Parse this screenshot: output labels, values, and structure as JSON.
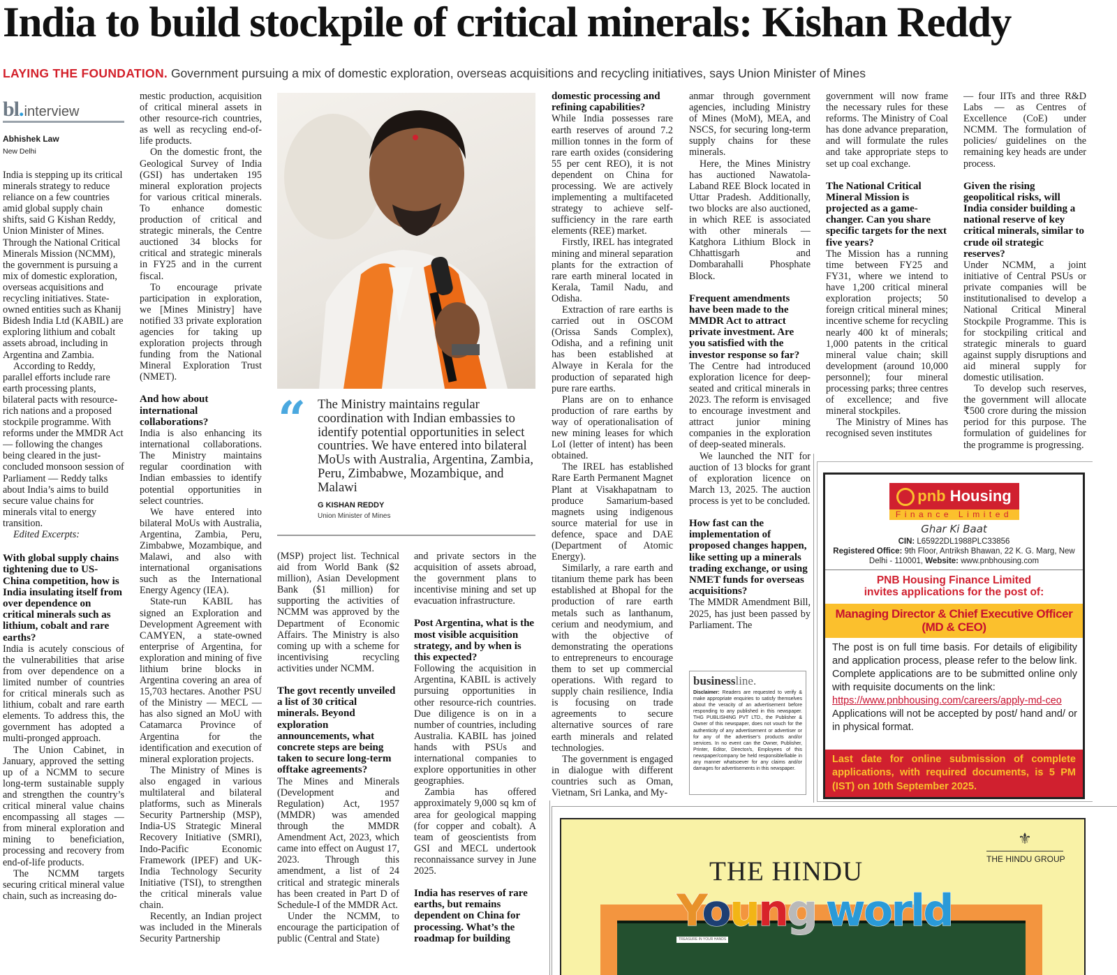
{
  "headline": "India to build stockpile of critical minerals: Kishan Reddy",
  "subhead": {
    "kicker": "LAYING THE FOUNDATION.",
    "text": "Government pursuing a mix of domestic exploration, overseas acquisitions and recycling initiatives, says Union Minister of Mines"
  },
  "section_logo": {
    "brand": "bl",
    "label": "interview"
  },
  "byline": {
    "author": "Abhishek Law",
    "dateline": "New Delhi"
  },
  "photo": {
    "subject": "G Kishan Reddy speaking into a microphone"
  },
  "pull_quote": {
    "text": "The Ministry maintains regular coordination with Indian embassies to identify potential opportunities in select countries. We have entered into bilateral MoUs with Australia, Argentina, Zambia, Peru, Zimbabwe, Mozambique, and Malawi",
    "name": "G KISHAN REDDY",
    "role": "Union Minister of Mines"
  },
  "columns": [
    [
      {
        "t": "intro",
        "text": "India is stepping up its critical minerals strategy to reduce reliance on a few countries amid global supply chain shifts, said G Kishan Reddy, Union Minister of Mines. Through the National Critical Minerals Mission (NCMM), the government is pursuing a mix of domestic exploration, overseas acquisitions and recycling initiatives. State-owned entities such as Khanij Bidesh India Ltd (KABIL) are exploring lithium and cobalt assets abroad, including in Argentina and Zambia."
      },
      {
        "t": "introp",
        "text": "According to Reddy, parallel efforts include rare earth processing plants, bilateral pacts with resource-rich nations and a proposed stockpile programme. With reforms under the MMDR Act — following the changes being cleared in the just-concluded monsoon session of Parliament — Reddy talks about India’s aims to build secure value chains for minerals vital to energy transition."
      },
      {
        "t": "note",
        "text": "Edited Excerpts:"
      },
      {
        "t": "q",
        "text": "With global supply chains tightening due to US-China competition, how is India insulating itself from over dependence on critical minerals such as lithium, cobalt and rare earths?"
      },
      {
        "t": "a",
        "text": "India is acutely conscious of the vulnerabilities that arise from over dependence on a limited number of countries for critical minerals such as lithium, cobalt and rare earth elements. To address this, the government has adopted a multi-pronged approach."
      },
      {
        "t": "p",
        "text": "The Union Cabinet, in January, approved the setting up of a NCMM to secure long-term sustainable supply and strengthen the country’s critical mineral value chains encompassing all stages — from mineral exploration and mining to beneficiation, processing and recovery from end-of-life products."
      },
      {
        "t": "p",
        "text": "The NCMM targets securing critical mineral value chain, such as increasing do-"
      }
    ],
    [
      {
        "t": "cont",
        "text": "mestic production, acquisition of critical mineral assets in other resource-rich countries, as well as recycling end-of-life products."
      },
      {
        "t": "p",
        "text": "On the domestic front, the Geological Survey of India (GSI) has undertaken 195 mineral exploration projects for various critical minerals. To enhance domestic production of critical and strategic minerals, the Centre auctioned 34 blocks for critical and strategic minerals in FY25 and in the current fiscal."
      },
      {
        "t": "p",
        "text": "To encourage private participation in exploration, we [Mines Ministry] have notified 33 private exploration agencies for taking up exploration projects through funding from the National Mineral Exploration Trust (NMET)."
      },
      {
        "t": "q",
        "text": "And how about international collaborations?"
      },
      {
        "t": "a",
        "text": "India is also enhancing its international collaborations. The Ministry maintains regular coordination with Indian embassies to identify potential opportunities in select countries."
      },
      {
        "t": "p",
        "text": "We have entered into bilateral MoUs with Australia, Argentina, Zambia, Peru, Zimbabwe, Mozambique, and Malawi, and also with international organisations such as the International Energy Agency (IEA)."
      },
      {
        "t": "p",
        "text": "State-run KABIL has signed an Exploration and Development Agreement with CAMYEN, a state-owned enterprise of Argentina, for exploration and mining of five lithium brine blocks in Argentina covering an area of 15,703 hectares. Another PSU of the Ministry — MECL — has also signed an MoU with Catamarca Province of Argentina for the identification and execution of mineral exploration projects."
      },
      {
        "t": "p",
        "text": "The Ministry of Mines is also engaged in various multilateral and bilateral platforms, such as Minerals Security Partnership (MSP), India-US Strategic Mineral Recovery Initiative (SMRI), Indo-Pacific Economic Framework (IPEF) and UK-India Technology Security Initiative (TSI), to strengthen the critical minerals value chain."
      },
      {
        "t": "p",
        "text": "Recently, an Indian project was included in the Minerals Security Partnership"
      }
    ],
    [
      {
        "t": "cont",
        "text": "(MSP) project list. Technical aid from World Bank ($2 million), Asian Development Bank ($1 million) for supporting the activities of NCMM was approved by the Department of Economic Affairs. The Ministry is also coming up with a scheme for incentivising recycling activities under NCMM."
      },
      {
        "t": "q",
        "text": "The govt recently unveiled a list of 30 critical minerals. Beyond exploration announcements, what concrete steps are being taken to secure long-term offtake agreements?"
      },
      {
        "t": "a",
        "text": "The Mines and Minerals (Development and Regulation) Act, 1957 (MMDR) was amended through the MMDR Amendment Act, 2023, which came into effect on August 17, 2023. Through this amendment, a list of 24 critical and strategic minerals has been created in Part D of Schedule-I of the MMDR Act."
      },
      {
        "t": "p",
        "text": "Under the NCMM, to encourage the participation of public (Central and State)"
      }
    ],
    [
      {
        "t": "cont",
        "text": "and private sectors in the acquisition of assets abroad, the government plans to incentivise mining and set up evacuation infrastructure."
      },
      {
        "t": "q",
        "text": "Post Argentina, what is the most visible acquisition strategy, and by when is this expected?"
      },
      {
        "t": "a",
        "text": "Following the acquisition in Argentina, KABIL is actively pursuing opportunities in other resource-rich countries. Due diligence is on in a number of countries, including Australia. KABIL has joined hands with PSUs and international companies to explore opportunities in other geographies."
      },
      {
        "t": "p",
        "text": "Zambia has offered approximately 9,000 sq km of area for geological mapping (for copper and cobalt). A team of geoscientists from GSI and MECL undertook reconnaissance survey in June 2025."
      },
      {
        "t": "q",
        "text": "India has reserves of rare earths, but remains dependent on China for processing. What’s the roadmap for building"
      }
    ],
    [
      {
        "t": "qcont",
        "text": "domestic processing and refining capabilities?"
      },
      {
        "t": "a",
        "text": "While India possesses rare earth reserves of around 7.2 million tonnes in the form of rare earth oxides (considering 55 per cent REO), it is not dependent on China for processing. We are actively implementing a multifaceted strategy to achieve self-sufficiency in the rare earth elements (REE) market."
      },
      {
        "t": "p",
        "text": "Firstly, IREL has integrated mining and mineral separation plants for the extraction of rare earth mineral located in Kerala, Tamil Nadu, and Odisha."
      },
      {
        "t": "p",
        "text": "Extraction of rare earths is carried out in OSCOM (Orissa Sands Complex), Odisha, and a refining unit has been established at Alwaye in Kerala for the production of separated high pure rare earths."
      },
      {
        "t": "p",
        "text": "Plans are on to enhance production of rare earths by way of operationalisation of new mining leases for which LoI (letter of intent) has been obtained."
      },
      {
        "t": "p",
        "text": "The IREL has established Rare Earth Permanent Magnet Plant at Visakhapatnam to produce Samarium-based magnets using indigenous source material for use in defence, space and DAE (Department of Atomic Energy)."
      },
      {
        "t": "p",
        "text": "Similarly, a rare earth and titanium theme park has been established at Bhopal for the production of rare earth metals such as lanthanum, cerium and neodymium, and with the objective of demonstrating the operations to entrepreneurs to encourage them to set up commercial operations. With regard to supply chain resilience, India is focusing on trade agreements to secure alternative sources of rare earth minerals and related technologies."
      },
      {
        "t": "p",
        "text": "The government is engaged in dialogue with different countries such as Oman, Vietnam, Sri Lanka, and My-"
      }
    ],
    [
      {
        "t": "cont",
        "text": "anmar through government agencies, including Ministry of Mines (MoM), MEA, and NSCS, for securing long-term supply chains for these minerals."
      },
      {
        "t": "p",
        "text": "Here, the Mines Ministry has auctioned Nawatola-Laband REE Block located in Uttar Pradesh. Additionally, two blocks are also auctioned, in which REE is associated with other minerals — Katghora Lithium Block in Chhattisgarh and Dombarahalli Phosphate Block."
      },
      {
        "t": "q",
        "text": "Frequent amendments have been made to the MMDR Act to attract private investment. Are you satisfied with the investor response so far?"
      },
      {
        "t": "a",
        "text": "The Centre had introduced exploration licence for deep-seated and critical minerals in 2023. The reform is envisaged to encourage investment and attract junior mining companies in the exploration of deep-seated minerals."
      },
      {
        "t": "p",
        "text": "We launched the NIT for auction of 13 blocks for grant of exploration licence on March 13, 2025. The auction process is yet to be concluded."
      },
      {
        "t": "q",
        "text": "How fast can the implementation of proposed changes happen, like setting up a minerals trading exchange, or using NMET funds for overseas acquisitions?"
      },
      {
        "t": "a",
        "text": "The MMDR Amendment Bill, 2025, has just been passed by Parliament. The"
      }
    ],
    [
      {
        "t": "cont",
        "text": "government will now frame the necessary rules for these reforms. The Ministry of Coal has done advance preparation, and will formulate the rules and take appropriate steps to set up coal exchange."
      },
      {
        "t": "q",
        "text": "The National Critical Mineral Mission is projected as a game-changer. Can you share specific targets for the next five years?"
      },
      {
        "t": "a",
        "text": "The Mission has a running time between FY25 and FY31, where we intend to have 1,200 critical mineral exploration projects; 50 foreign critical mineral mines; incentive scheme for recycling nearly 400 kt of minerals; 1,000 patents in the critical mineral value chain; skill development (around 10,000 personnel); four mineral processing parks; three centres of excellence; and five mineral stockpiles."
      },
      {
        "t": "p",
        "text": "The Ministry of Mines has recognised seven institutes"
      }
    ],
    [
      {
        "t": "cont",
        "text": "— four IITs and three R&D Labs — as Centres of Excellence (CoE) under NCMM. The formulation of policies/ guidelines on the remaining key heads are under process."
      },
      {
        "t": "q",
        "text": "Given the rising geopolitical risks, will India consider building a national reserve of key critical minerals, similar to crude oil strategic reserves?"
      },
      {
        "t": "a",
        "text": "Under NCMM, a joint initiative of Central PSUs or private companies will be institutionalised to develop a National Critical Mineral Stockpile Programme. This is for stockpiling critical and strategic minerals to guard against supply disruptions and aid mineral supply for domestic utilisation."
      },
      {
        "t": "p",
        "text": "To develop such reserves, the government will allocate ₹500 crore during the mission period for this purpose. The formulation of guidelines for the programme is progressing."
      }
    ]
  ],
  "disclaimer": {
    "brand_bold": "business",
    "brand_light": "line.",
    "label": "Disclaimer:",
    "text": "Readers are requested to verify & make appropriate enquiries to satisfy themselves about the veracity of an advertisement before responding to any published in this newspaper. THG PUBLISHING PVT LTD., the Publisher & Owner of this newspaper, does not vouch for the authenticity of any advertisement or advertiser or for any of the advertiser’s products and/or services. In no event can the Owner, Publisher, Printer, Editor, Director/s, Employees of this newspaper/company be held responsible/liable in any manner whatsoever for any claims and/or damages for advertisements in this newspaper."
  },
  "pnb_ad": {
    "logo_brand": "pnb",
    "logo_word": "Housing",
    "logo_sub": "Finance Limited",
    "tagline": "Ghar Ki Baat",
    "cin_label": "CIN:",
    "cin": "L65922DL1988PLC33856",
    "office_label": "Registered Office:",
    "office": "9th Floor, Antriksh Bhawan, 22 K. G. Marg, New Delhi - 110001,",
    "website_label": "Website:",
    "website": "www.pnbhousing.com",
    "invite_line1": "PNB Housing Finance Limited",
    "invite_line2": "invites applications for the post of:",
    "post_line1": "Managing Director & Chief Executive Officer",
    "post_line2": "(MD & CEO)",
    "body": "The post is on full time basis. For details of eligibility and application process, please refer to the below link. Complete applications are to be submitted online only with requisite documents on the link:",
    "link": "https://www.pnbhousing.com/careers/apply-md-ceo",
    "note": "Applications will not be accepted by post/ hand and/ or in physical format.",
    "deadline": "Last date for online submission of complete applications, with required documents, is 5 PM (IST) on 10th September 2025.",
    "colors": {
      "red": "#d0202f",
      "yellow": "#fbc02d"
    }
  },
  "young_world_ad": {
    "group": "THE HINDU GROUP",
    "masthead": "THE HINDU",
    "title_letters": [
      {
        "ch": "Y",
        "color": "#e8922a"
      },
      {
        "ch": "o",
        "color": "#1d3f73"
      },
      {
        "ch": "u",
        "color": "#f2b516"
      },
      {
        "ch": "n",
        "color": "#d8242a"
      },
      {
        "ch": "g",
        "color": "#b9b9b9"
      },
      {
        "ch": "world",
        "color": "#2a9ad8"
      }
    ],
    "tagline": "TREASURE IN YOUR HANDS"
  }
}
